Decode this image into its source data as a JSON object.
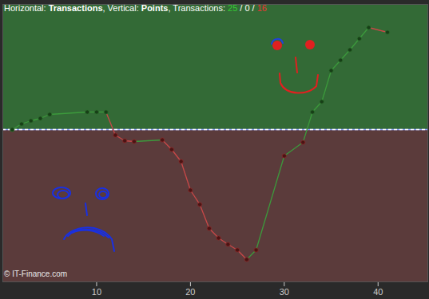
{
  "chart_data": {
    "type": "line",
    "title_parts": [
      {
        "text": "Horizontal: "
      },
      {
        "text": "Transactions",
        "bold": true
      },
      {
        "text": ", Vertical: "
      },
      {
        "text": "Points",
        "bold": true
      },
      {
        "text": ", Transactions: "
      },
      {
        "text": "25",
        "color": "#33cc33"
      },
      {
        "text": " / "
      },
      {
        "text": "0",
        "color": "#ffffff"
      },
      {
        "text": " / "
      },
      {
        "text": "16",
        "color": "#ee3333"
      }
    ],
    "caption": "© IT-Finance.com",
    "x": [
      1,
      2,
      3,
      4,
      5,
      9,
      10,
      11,
      12,
      13,
      14,
      17,
      18,
      19,
      20,
      21,
      22,
      23,
      24,
      25,
      26,
      27,
      30,
      32,
      33,
      34,
      35,
      36,
      37,
      38,
      39,
      41
    ],
    "values": [
      0,
      7,
      11,
      14,
      19,
      22,
      22,
      22,
      -7,
      -14,
      -15,
      -13,
      -25,
      -40,
      -76,
      -94,
      -124,
      -136,
      -144,
      -151,
      -163,
      -151,
      -33,
      -16,
      22,
      35,
      74,
      87,
      100,
      114,
      128,
      122
    ],
    "xlim": [
      0,
      45.3
    ],
    "ylim": [
      -191,
      157
    ],
    "xticks": [
      10,
      20,
      30,
      40
    ],
    "yticks": [
      0
    ],
    "tick_labels": "x",
    "grid": false,
    "marker": "circle"
  }
}
